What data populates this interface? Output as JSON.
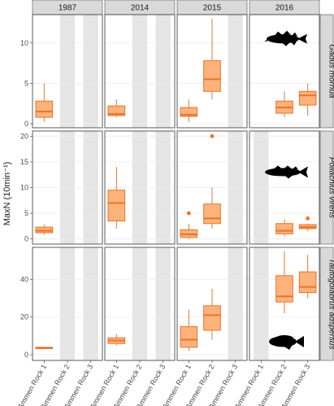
{
  "chart_data": {
    "type": "boxplot",
    "ylabel": "MaxN (10min⁻¹)",
    "columns": [
      "1987",
      "2014",
      "2015",
      "2016"
    ],
    "rows": [
      "Gadus morhua",
      "Pollachius virens",
      "Tautogolabrus adspersus"
    ],
    "categories": [
      "Ammen Rock 1",
      "Ammen Rock 2",
      "Ammen Rock 3"
    ],
    "colors": {
      "box_fill": "#fdb27a",
      "box_line": "#e8742a",
      "unsampled": "#e5e5e5",
      "strip": "#d9d9d9",
      "silhouette": "#000000"
    },
    "panels": [
      {
        "row": 0,
        "ylim": [
          -0.5,
          13.5
        ],
        "yticks": [
          0,
          5,
          10
        ],
        "silhouette": "cod-silhouette-icon",
        "silhouette_col": 3,
        "silhouette_y": 10.5,
        "cells": [
          {
            "unsampled": [
              1,
              2
            ],
            "boxes": [
              {
                "cat": 0,
                "min": 0.2,
                "q1": 0.8,
                "median": 1.5,
                "q3": 2.8,
                "max": 5.0,
                "outliers": []
              }
            ]
          },
          {
            "unsampled": [
              1,
              2
            ],
            "boxes": [
              {
                "cat": 0,
                "min": 0.8,
                "q1": 1.0,
                "median": 1.2,
                "q3": 2.2,
                "max": 3.0,
                "outliers": []
              }
            ]
          },
          {
            "unsampled": [
              2
            ],
            "boxes": [
              {
                "cat": 0,
                "min": 0.2,
                "q1": 0.9,
                "median": 1.1,
                "q3": 2.0,
                "max": 3.0,
                "outliers": []
              },
              {
                "cat": 1,
                "min": 3.0,
                "q1": 4.0,
                "median": 5.5,
                "q3": 7.8,
                "max": 13.0,
                "outliers": []
              }
            ]
          },
          {
            "unsampled": [],
            "boxes": [
              {
                "cat": 1,
                "min": 0.8,
                "q1": 1.3,
                "median": 2.0,
                "q3": 2.8,
                "max": 4.0,
                "outliers": []
              },
              {
                "cat": 2,
                "min": 1.0,
                "q1": 2.3,
                "median": 3.5,
                "q3": 4.0,
                "max": 5.0,
                "outliers": []
              }
            ]
          }
        ]
      },
      {
        "row": 1,
        "ylim": [
          -1,
          21
        ],
        "yticks": [
          0,
          5,
          10,
          15,
          20
        ],
        "silhouette": "pollock-silhouette-icon",
        "silhouette_col": 3,
        "silhouette_y": 13,
        "cells": [
          {
            "unsampled": [
              1,
              2
            ],
            "boxes": [
              {
                "cat": 0,
                "min": 0.8,
                "q1": 1.2,
                "median": 1.6,
                "q3": 2.3,
                "max": 2.8,
                "outliers": []
              }
            ]
          },
          {
            "unsampled": [
              1,
              2
            ],
            "boxes": [
              {
                "cat": 0,
                "min": 2.0,
                "q1": 3.5,
                "median": 7.0,
                "q3": 9.5,
                "max": 14.0,
                "outliers": []
              }
            ]
          },
          {
            "unsampled": [
              2
            ],
            "boxes": [
              {
                "cat": 0,
                "min": 0.0,
                "q1": 0.3,
                "median": 0.9,
                "q3": 1.8,
                "max": 3.0,
                "outliers": [
                  5.0
                ]
              },
              {
                "cat": 1,
                "min": 2.0,
                "q1": 3.0,
                "median": 4.0,
                "q3": 6.8,
                "max": 10.0,
                "outliers": [
                  20.0
                ]
              }
            ]
          },
          {
            "unsampled": [
              0
            ],
            "boxes": [
              {
                "cat": 1,
                "min": 0.5,
                "q1": 1.0,
                "median": 1.6,
                "q3": 3.0,
                "max": 3.8,
                "outliers": []
              },
              {
                "cat": 2,
                "min": 1.5,
                "q1": 2.0,
                "median": 2.3,
                "q3": 2.8,
                "max": 3.0,
                "outliers": [
                  4.0
                ]
              }
            ]
          }
        ]
      },
      {
        "row": 2,
        "ylim": [
          -3,
          57
        ],
        "yticks": [
          0,
          20,
          40
        ],
        "silhouette": "cunner-silhouette-icon",
        "silhouette_col": 3,
        "silhouette_y": 7,
        "cells": [
          {
            "unsampled": [
              1,
              2
            ],
            "boxes": [
              {
                "cat": 0,
                "min": 3.0,
                "q1": 3.3,
                "median": 3.6,
                "q3": 4.0,
                "max": 4.3,
                "outliers": []
              }
            ]
          },
          {
            "unsampled": [
              1,
              2
            ],
            "boxes": [
              {
                "cat": 0,
                "min": 5.0,
                "q1": 6.0,
                "median": 7.5,
                "q3": 9.0,
                "max": 11.0,
                "outliers": []
              }
            ]
          },
          {
            "unsampled": [
              2
            ],
            "boxes": [
              {
                "cat": 0,
                "min": 2.0,
                "q1": 4.0,
                "median": 8.0,
                "q3": 15.0,
                "max": 24.0,
                "outliers": []
              },
              {
                "cat": 1,
                "min": 8.0,
                "q1": 13.0,
                "median": 21.0,
                "q3": 26.0,
                "max": 35.0,
                "outliers": []
              }
            ]
          },
          {
            "unsampled": [
              0
            ],
            "boxes": [
              {
                "cat": 1,
                "min": 22.0,
                "q1": 28.0,
                "median": 31.0,
                "q3": 42.0,
                "max": 55.0,
                "outliers": []
              },
              {
                "cat": 2,
                "min": 30.0,
                "q1": 33.0,
                "median": 36.0,
                "q3": 44.0,
                "max": 53.0,
                "outliers": []
              }
            ]
          }
        ]
      }
    ]
  }
}
